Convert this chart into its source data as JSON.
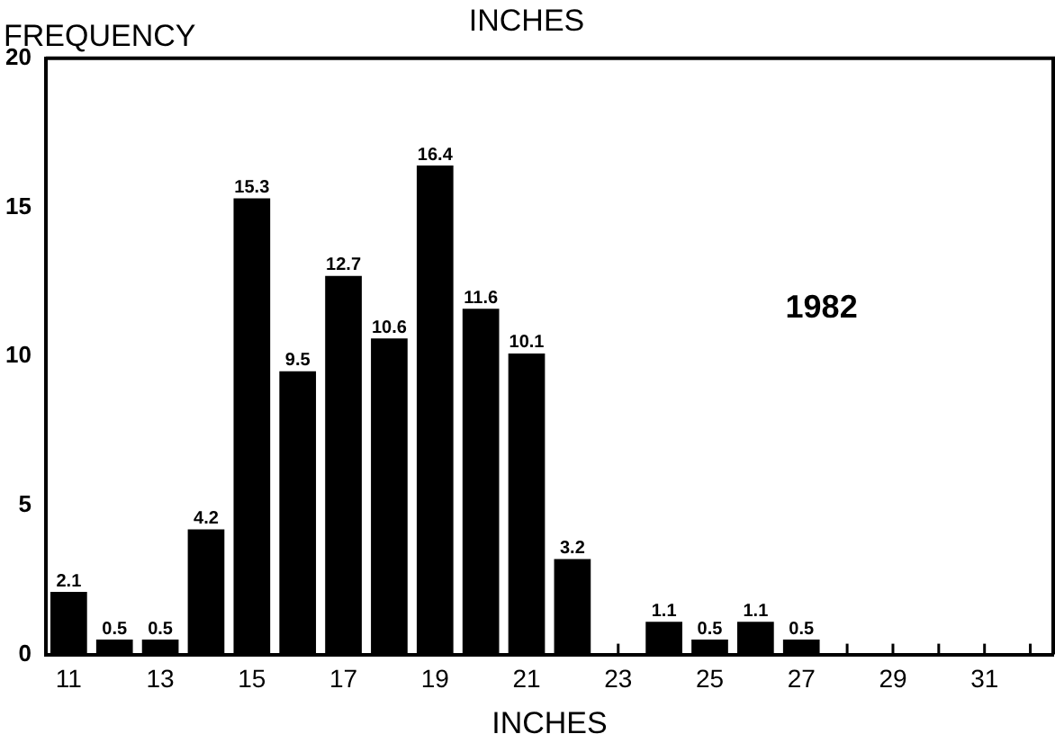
{
  "chart_data": {
    "type": "bar",
    "title": "INCHES",
    "xlabel": "INCHES",
    "ylabel": "FREQUENCY",
    "categories": [
      "11",
      null,
      "13",
      null,
      "15",
      null,
      "17",
      null,
      "19",
      null,
      "21",
      null,
      "23",
      null,
      "25",
      null,
      "27",
      null,
      "29",
      null,
      "31",
      null
    ],
    "values": [
      2.1,
      0.5,
      0.5,
      4.2,
      15.3,
      9.5,
      12.7,
      10.6,
      16.4,
      11.6,
      10.1,
      3.2,
      null,
      1.1,
      0.5,
      1.1,
      0.5,
      null,
      null,
      null,
      null,
      null
    ],
    "color": "#000000",
    "ylim": [
      0,
      20
    ],
    "yticks": [
      0,
      5,
      10,
      15,
      20
    ],
    "grid": false,
    "legend": false,
    "data_labels": true,
    "annotations": [
      "1982"
    ]
  }
}
